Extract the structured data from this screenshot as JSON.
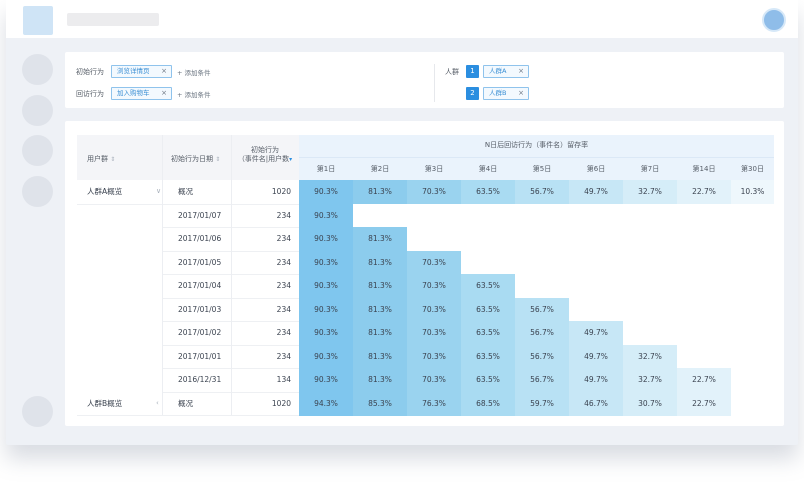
{
  "filters": {
    "initial_action_label": "初始行为",
    "initial_action_value": "浏览详情页",
    "return_action_label": "回访行为",
    "return_action_value": "加入购物车",
    "add_condition": "+ 添加条件",
    "crowd_label": "人群",
    "crowds": [
      {
        "index": "1",
        "name": "人群A"
      },
      {
        "index": "2",
        "name": "人群B"
      }
    ],
    "remove_icon": "×"
  },
  "table": {
    "headers": {
      "user_group": "用户群",
      "initial_date": "初始行为日期",
      "initial_count_line1": "初始行为",
      "initial_count_line2": "（事件名|用户数",
      "retention_title": "N日后回访行为（事件名）留存率"
    },
    "day_headers": [
      "第1日",
      "第2日",
      "第3日",
      "第4日",
      "第5日",
      "第6日",
      "第7日",
      "第14日",
      "第30日"
    ],
    "rows": [
      {
        "group": "人群A概览",
        "date": "概况",
        "count": "1020",
        "values": [
          "90.3%",
          "81.3%",
          "70.3%",
          "63.5%",
          "56.7%",
          "49.7%",
          "32.7%",
          "22.7%",
          "10.3%"
        ]
      },
      {
        "group": "",
        "date": "2017/01/07",
        "count": "234",
        "values": [
          "90.3%"
        ]
      },
      {
        "group": "",
        "date": "2017/01/06",
        "count": "234",
        "values": [
          "90.3%",
          "81.3%"
        ]
      },
      {
        "group": "",
        "date": "2017/01/05",
        "count": "234",
        "values": [
          "90.3%",
          "81.3%",
          "70.3%"
        ]
      },
      {
        "group": "",
        "date": "2017/01/04",
        "count": "234",
        "values": [
          "90.3%",
          "81.3%",
          "70.3%",
          "63.5%"
        ]
      },
      {
        "group": "",
        "date": "2017/01/03",
        "count": "234",
        "values": [
          "90.3%",
          "81.3%",
          "70.3%",
          "63.5%",
          "56.7%"
        ]
      },
      {
        "group": "",
        "date": "2017/01/02",
        "count": "234",
        "values": [
          "90.3%",
          "81.3%",
          "70.3%",
          "63.5%",
          "56.7%",
          "49.7%"
        ]
      },
      {
        "group": "",
        "date": "2017/01/01",
        "count": "234",
        "values": [
          "90.3%",
          "81.3%",
          "70.3%",
          "63.5%",
          "56.7%",
          "49.7%",
          "32.7%"
        ]
      },
      {
        "group": "",
        "date": "2016/12/31",
        "count": "134",
        "values": [
          "90.3%",
          "81.3%",
          "70.3%",
          "63.5%",
          "56.7%",
          "49.7%",
          "32.7%",
          "22.7%"
        ]
      },
      {
        "group": "人群B概览",
        "date": "概况",
        "count": "1020",
        "values": [
          "94.3%",
          "85.3%",
          "76.3%",
          "68.5%",
          "59.7%",
          "46.7%",
          "30.7%",
          "22.7%",
          ""
        ]
      }
    ],
    "heat_colors": [
      "#7fc6ee",
      "#8ccced",
      "#9ad3ef",
      "#a9dbf2",
      "#b8e1f4",
      "#c7e7f6",
      "#d5edf8",
      "#e2f2fa",
      "#eef7fc"
    ]
  }
}
